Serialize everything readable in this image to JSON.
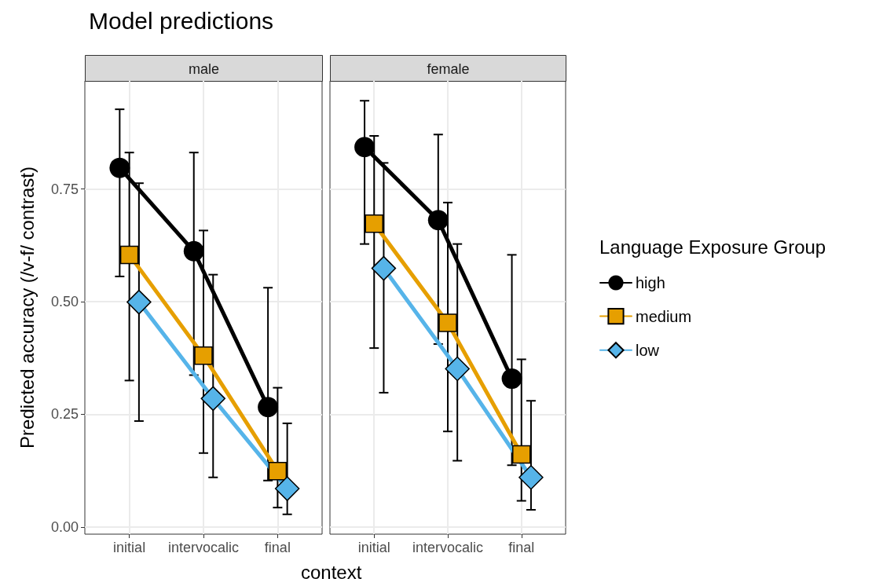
{
  "chart_data": [
    {
      "type": "line",
      "title": "Model predictions",
      "subtitle": "male",
      "xlabel": "context",
      "ylabel": "Predicted accuracy (/v-f/ contrast)",
      "categories": [
        "initial",
        "intervocalic",
        "final"
      ],
      "ylim": [
        -0.016,
        0.99
      ],
      "yticks": [
        {
          "value": 0,
          "label": "0.00"
        },
        {
          "value": 0.25,
          "label": "0.25"
        },
        {
          "value": 0.5,
          "label": "0.50"
        },
        {
          "value": 0.75,
          "label": "0.75"
        }
      ],
      "grid": true,
      "legend": false,
      "series": [
        {
          "color": "#000000",
          "marker": "circle",
          "values": [
            0.797,
            0.612,
            0.266
          ],
          "errors": [
            [
              0.556,
              0.927
            ],
            [
              0.337,
              0.831
            ],
            [
              0.103,
              0.531
            ]
          ]
        },
        {
          "color": "#e69f00",
          "marker": "square",
          "values": [
            0.604,
            0.38,
            0.124
          ],
          "errors": [
            [
              0.325,
              0.831
            ],
            [
              0.164,
              0.658
            ],
            [
              0.043,
              0.309
            ]
          ]
        },
        {
          "color": "#56b4e9",
          "marker": "diamond",
          "values": [
            0.499,
            0.285,
            0.085
          ],
          "errors": [
            [
              0.235,
              0.763
            ],
            [
              0.11,
              0.56
            ],
            [
              0.028,
              0.23
            ]
          ]
        }
      ]
    },
    {
      "type": "line",
      "subtitle": "female",
      "categories": [
        "initial",
        "intervocalic",
        "final"
      ],
      "ylim": [
        -0.016,
        0.99
      ],
      "yticks": [
        0,
        0.25,
        0.5,
        0.75
      ],
      "grid": true,
      "legend": "right",
      "legend_title": "Language Exposure Group",
      "tick_labels": "x",
      "series": [
        {
          "name": "high",
          "color": "#000000",
          "marker": "circle",
          "values": [
            0.843,
            0.681,
            0.329
          ],
          "errors": [
            [
              0.628,
              0.946
            ],
            [
              0.406,
              0.871
            ],
            [
              0.137,
              0.604
            ]
          ]
        },
        {
          "name": "medium",
          "color": "#e69f00",
          "marker": "square",
          "values": [
            0.673,
            0.453,
            0.161
          ],
          "errors": [
            [
              0.397,
              0.868
            ],
            [
              0.212,
              0.72
            ],
            [
              0.058,
              0.372
            ]
          ]
        },
        {
          "name": "low",
          "color": "#56b4e9",
          "marker": "diamond",
          "values": [
            0.574,
            0.351,
            0.11
          ],
          "errors": [
            [
              0.298,
              0.808
            ],
            [
              0.147,
              0.628
            ],
            [
              0.038,
              0.28
            ]
          ]
        }
      ]
    }
  ]
}
